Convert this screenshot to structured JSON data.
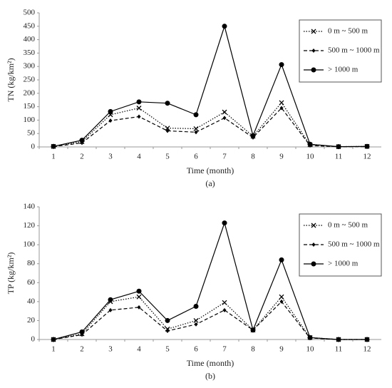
{
  "chart_data": [
    {
      "type": "line",
      "y_label": "TN (kg/km²)",
      "x_label": "Time (month)",
      "caption": "(a)",
      "categories": [
        "1",
        "2",
        "3",
        "4",
        "5",
        "6",
        "7",
        "8",
        "9",
        "10",
        "11",
        "12"
      ],
      "ylim": [
        0,
        500
      ],
      "yticks": [
        0,
        50,
        100,
        150,
        200,
        250,
        300,
        350,
        400,
        450,
        500
      ],
      "grid": false,
      "series": [
        {
          "name": "0 m ~ 500 m",
          "color": "#000000",
          "style": "dotted",
          "marker": "x",
          "values": [
            2,
            20,
            120,
            145,
            70,
            68,
            130,
            40,
            165,
            8,
            1,
            2
          ]
        },
        {
          "name": "500 m ~ 1000 m",
          "color": "#000000",
          "style": "dashed",
          "marker": "diamond",
          "values": [
            1,
            15,
            98,
            113,
            60,
            55,
            108,
            35,
            145,
            5,
            1,
            1
          ]
        },
        {
          "name": "> 1000 m",
          "color": "#000000",
          "style": "solid",
          "marker": "circle",
          "values": [
            2,
            25,
            132,
            168,
            163,
            120,
            450,
            42,
            307,
            10,
            1,
            2
          ]
        }
      ]
    },
    {
      "type": "line",
      "y_label": "TP (kg/km²)",
      "x_label": "Time (month)",
      "caption": "(b)",
      "categories": [
        "1",
        "2",
        "3",
        "4",
        "5",
        "6",
        "7",
        "8",
        "9",
        "10",
        "11",
        "12"
      ],
      "ylim": [
        0,
        140
      ],
      "yticks": [
        0,
        20,
        40,
        60,
        80,
        100,
        120,
        140
      ],
      "grid": false,
      "series": [
        {
          "name": "0 m ~ 500 m",
          "color": "#000000",
          "style": "dotted",
          "marker": "x",
          "values": [
            0,
            6,
            40,
            45,
            11,
            20,
            39,
            10,
            45,
            2,
            0,
            0
          ]
        },
        {
          "name": "500 m ~ 1000 m",
          "color": "#000000",
          "style": "dashed",
          "marker": "diamond",
          "values": [
            0,
            5,
            31,
            34,
            9,
            16,
            31,
            10,
            40,
            1.5,
            0,
            0
          ]
        },
        {
          "name": "> 1000 m",
          "color": "#000000",
          "style": "solid",
          "marker": "circle",
          "values": [
            0,
            8,
            42,
            51,
            20,
            35,
            123,
            10,
            84,
            2,
            0,
            0
          ]
        }
      ]
    }
  ]
}
